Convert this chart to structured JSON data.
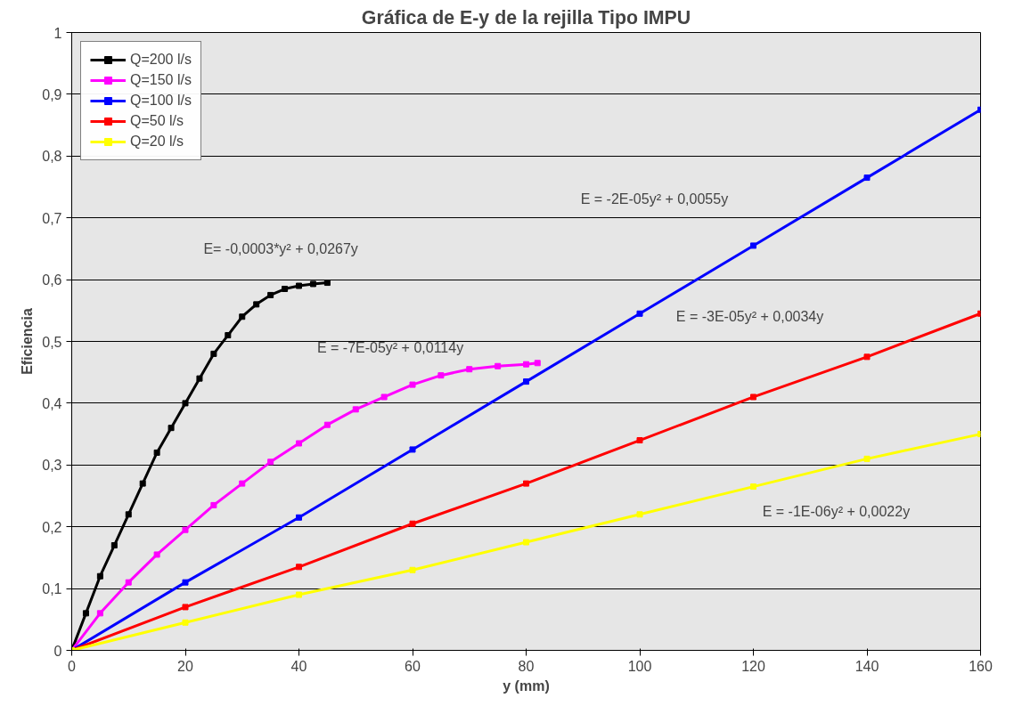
{
  "chart_data": {
    "type": "line",
    "title": "Gráfica de E-y de la rejilla Tipo IMPU",
    "xlabel": "y (mm)",
    "ylabel": "Eficiencia",
    "xlim": [
      0,
      160
    ],
    "xticks": [
      0,
      20,
      40,
      60,
      80,
      100,
      120,
      140,
      160
    ],
    "ylim": [
      0,
      1
    ],
    "yticks": [
      0,
      {
        "value": 0.1,
        "label": "0,1"
      },
      {
        "value": 0.2,
        "label": "0,2"
      },
      {
        "value": 0.3,
        "label": "0,3"
      },
      {
        "value": 0.4,
        "label": "0,4"
      },
      {
        "value": 0.5,
        "label": "0,5"
      },
      {
        "value": 0.6,
        "label": "0,6"
      },
      {
        "value": 0.7,
        "label": "0,7"
      },
      {
        "value": 0.8,
        "label": "0,8"
      },
      {
        "value": 0.9,
        "label": "0,9"
      },
      1
    ],
    "grid": "y",
    "legend": "top left",
    "marker": "square",
    "line_style": "solid",
    "series": [
      {
        "name": "Q=200 l/s",
        "color": "#000000",
        "x": [
          0,
          2.5,
          5,
          7.5,
          10,
          12.5,
          15,
          17.5,
          20,
          22.5,
          25,
          27.5,
          30,
          32.5,
          35,
          37.5,
          40,
          42.5,
          45
        ],
        "values": [
          0,
          0.06,
          0.12,
          0.17,
          0.22,
          0.27,
          0.32,
          0.36,
          0.4,
          0.44,
          0.48,
          0.51,
          0.54,
          0.56,
          0.575,
          0.585,
          0.59,
          0.593,
          0.595
        ]
      },
      {
        "name": "Q=150 l/s",
        "color": "#ff00ff",
        "x": [
          0,
          5,
          10,
          15,
          20,
          25,
          30,
          35,
          40,
          45,
          50,
          55,
          60,
          65,
          70,
          75,
          80,
          82
        ],
        "values": [
          0,
          0.06,
          0.11,
          0.155,
          0.195,
          0.235,
          0.27,
          0.305,
          0.335,
          0.365,
          0.39,
          0.41,
          0.43,
          0.445,
          0.455,
          0.46,
          0.463,
          0.465
        ]
      },
      {
        "name": "Q=100 l/s",
        "color": "#0000ff",
        "x": [
          0,
          20,
          40,
          60,
          80,
          100,
          120,
          140,
          160
        ],
        "values": [
          0,
          0.11,
          0.215,
          0.325,
          0.435,
          0.545,
          0.655,
          0.765,
          0.875
        ]
      },
      {
        "name": "Q=50 l/s",
        "color": "#ff0000",
        "x": [
          0,
          20,
          40,
          60,
          80,
          100,
          120,
          140,
          160
        ],
        "values": [
          0,
          0.07,
          0.135,
          0.205,
          0.27,
          0.34,
          0.41,
          0.475,
          0.545
        ]
      },
      {
        "name": "Q=20 l/s",
        "color": "#ffff00",
        "x": [
          0,
          20,
          40,
          60,
          80,
          100,
          120,
          140,
          160
        ],
        "values": [
          0,
          0.045,
          0.09,
          0.13,
          0.175,
          0.22,
          0.265,
          0.31,
          0.35
        ]
      }
    ],
    "annotations": [
      "E= -0,0003*y² + 0,0267y",
      "E = -7E-05y² + 0,0114y",
      "E = -2E-05y² + 0,0055y",
      "E = -3E-05y² + 0,0034y",
      "E = -1E-06y² + 0,0022y"
    ]
  }
}
